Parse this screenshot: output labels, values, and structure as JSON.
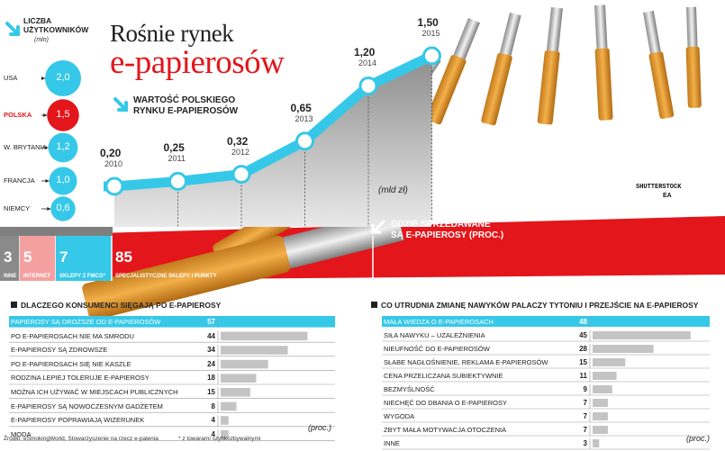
{
  "header": {
    "title_line1": "Rośnie rynek",
    "title_line2": "e-papierosów"
  },
  "users_panel": {
    "title_line1": "Liczba",
    "title_line2": "użytkowników",
    "unit": "(mln)",
    "items": [
      {
        "country": "USA",
        "value": "2,0",
        "highlight": false
      },
      {
        "country": "POLSKA",
        "value": "1,5",
        "highlight": true
      },
      {
        "country": "W. BRYTANIA",
        "value": "1,2",
        "highlight": false
      },
      {
        "country": "FRANCJA",
        "value": "1,0",
        "highlight": false
      },
      {
        "country": "NIEMCY",
        "value": "0,6",
        "highlight": false
      }
    ]
  },
  "market_label": {
    "line1": "Wartość polskiego",
    "line2": "rynku e-papierosów"
  },
  "unit_label": "(mld zł)",
  "where_label": {
    "line1": "Gdzie sprzedawane",
    "line2": "są e-papierosy (proc.)"
  },
  "shops": [
    {
      "value": "3",
      "label": "Inne"
    },
    {
      "value": "5",
      "label": "Internet"
    },
    {
      "value": "7",
      "label": "Sklepy z FMCG*"
    },
    {
      "value": "85",
      "label": "Specjalistyczne sklepy i punkty"
    }
  ],
  "credit": {
    "line1": "SHUTTERSTOCK",
    "line2": "EA"
  },
  "chart_data": [
    {
      "type": "line",
      "title": "Wartość polskiego rynku e-papierosów",
      "unit": "(mld zł)",
      "x": [
        "2010",
        "2011",
        "2012",
        "2013",
        "2014",
        "2015"
      ],
      "values": [
        0.2,
        0.25,
        0.32,
        0.65,
        1.2,
        1.5
      ],
      "value_labels": [
        "0,20",
        "0,25",
        "0,32",
        "0,65",
        "1,20",
        "1,50"
      ]
    },
    {
      "type": "bar",
      "title": "Liczba użytkowników",
      "unit": "(mln)",
      "categories": [
        "USA",
        "POLSKA",
        "W. BRYTANIA",
        "FRANCJA",
        "NIEMCY"
      ],
      "values": [
        2.0,
        1.5,
        1.2,
        1.0,
        0.6
      ]
    },
    {
      "type": "bar",
      "title": "Gdzie sprzedawane są e-papierosy (proc.)",
      "categories": [
        "Inne",
        "Internet",
        "Sklepy z FMCG*",
        "Specjalistyczne sklepy i punkty"
      ],
      "values": [
        3,
        5,
        7,
        85
      ]
    },
    {
      "type": "bar",
      "title": "Dlaczego konsumenci sięgają po e-papierosy",
      "unit": "(proc.)",
      "categories": [
        "PAPIEROSY SĄ DROŻSZE OD E-PAPIEROSÓW",
        "PO E-PAPIEROSACH NIE MA SMRODU",
        "E-PAPIEROSY SĄ ZDROWSZE",
        "PO E-PAPIEROSACH SIĘ NIE KASZLE",
        "RODZINA LEPIEJ TOLERUJE E-PAPIEROSY",
        "MOŻNA ICH UŻYWAĆ W MIEJSCACH PUBLICZNYCH",
        "E-PAPIEROSY SĄ NOWOCZESNYM GADŻETEM",
        "E-PAPIEROSY POPRAWIAJĄ WIZERUNEK",
        "MODA"
      ],
      "values": [
        57,
        44,
        34,
        24,
        18,
        15,
        8,
        4,
        4
      ]
    },
    {
      "type": "bar",
      "title": "Co utrudnia zmianę nawyków palaczy tytoniu i przejście na e-papierosy",
      "unit": "(proc.)",
      "categories": [
        "MAŁA WIEDZA O E-PAPIEROSACH",
        "SIŁA NAWYKU – UZALEŻNIENIA",
        "NIEUFNOŚĆ DO E-PAPIEROSÓW",
        "SŁABE NAGŁOŚNIENIE, REKLAMA E-PAPIEROSÓW",
        "CENA PRZELICZANA SUBIEKTYWNIE",
        "BEZMYŚLNOŚĆ",
        "NIECHĘĆ DO DBANIA O E-PAPIEROSY",
        "WYGODA",
        "ZBYT MAŁA MOTYWACJA OTOCZENIA",
        "INNE"
      ],
      "values": [
        48,
        45,
        28,
        15,
        11,
        9,
        7,
        7,
        7,
        3
      ]
    }
  ],
  "reasons": {
    "title": "Dlaczego konsumenci sięgają po e-papierosy",
    "proc": "(proc.)",
    "max": 57,
    "rows": [
      {
        "label": "PAPIEROSY SĄ DROŻSZE OD E-PAPIEROSÓW",
        "value": 57,
        "highlight": true
      },
      {
        "label": "PO E-PAPIEROSACH NIE MA SMRODU",
        "value": 44
      },
      {
        "label": "E-PAPIEROSY SĄ ZDROWSZE",
        "value": 34
      },
      {
        "label": "PO E-PAPIEROSACH SIĘ NIE KASZLE",
        "value": 24
      },
      {
        "label": "RODZINA LEPIEJ TOLERUJE E-PAPIEROSY",
        "value": 18
      },
      {
        "label": "MOŻNA ICH UŻYWAĆ W MIEJSCACH PUBLICZNYCH",
        "value": 15
      },
      {
        "label": "E-PAPIEROSY SĄ NOWOCZESNYM GADŻETEM",
        "value": 8
      },
      {
        "label": "E-PAPIEROSY POPRAWIAJĄ WIZERUNEK",
        "value": 4
      },
      {
        "label": "MODA",
        "value": 4
      }
    ]
  },
  "obstacles": {
    "title": "Co utrudnia zmianę nawyków palaczy tytoniu i przejście na e-papierosy",
    "proc": "(proc.)",
    "max": 48,
    "rows": [
      {
        "label": "MAŁA WIEDZA O E-PAPIEROSACH",
        "value": 48,
        "highlight": true
      },
      {
        "label": "SIŁA NAWYKU – UZALEŻNIENIA",
        "value": 45
      },
      {
        "label": "NIEUFNOŚĆ DO E-PAPIEROSÓW",
        "value": 28
      },
      {
        "label": "SŁABE NAGŁOŚNIENIE, REKLAMA E-PAPIEROSÓW",
        "value": 15
      },
      {
        "label": "CENA PRZELICZANA SUBIEKTYWNIE",
        "value": 11
      },
      {
        "label": "BEZMYŚLNOŚĆ",
        "value": 9
      },
      {
        "label": "NIECHĘĆ DO DBANIA O E-PAPIEROSY",
        "value": 7
      },
      {
        "label": "WYGODA",
        "value": 7
      },
      {
        "label": "ZBYT MAŁA MOTYWACJA OTOCZENIA",
        "value": 7
      },
      {
        "label": "INNE",
        "value": 3
      }
    ]
  },
  "footer": {
    "source": "Źródło: eSmokingWorld, Stowarzyszenie na rzecz e-palenia",
    "note": "* z towarami szybkozbywalnymi"
  },
  "colors": {
    "cyan": "#36c8e8",
    "red": "#e3161b",
    "grey_bar": "#c4c4c4",
    "dark_grey": "#8a8a8a",
    "pink": "#f5a0a0"
  }
}
